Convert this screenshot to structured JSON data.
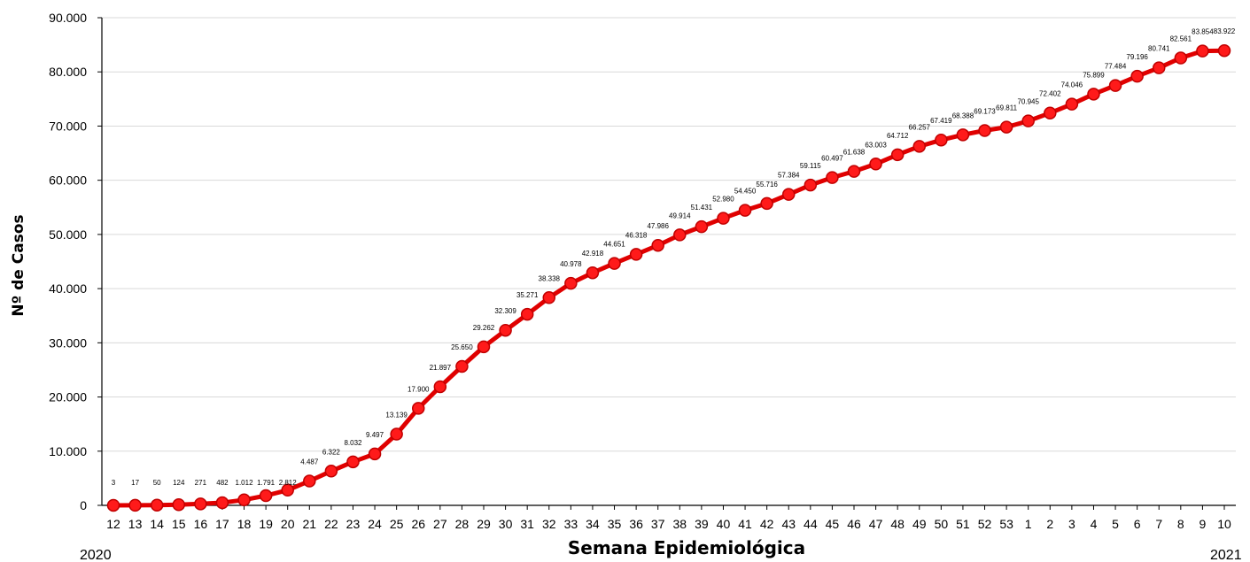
{
  "chart_data": {
    "type": "line",
    "title": "",
    "xlabel": "Semana Epidemiológica",
    "ylabel": "Nº de Casos",
    "ylim": [
      0,
      90000
    ],
    "yticks": [
      "0",
      "10.000",
      "20.000",
      "30.000",
      "40.000",
      "50.000",
      "60.000",
      "70.000",
      "80.000",
      "90.000"
    ],
    "grid": "horizontal",
    "year_labels": {
      "start": "2020",
      "end": "2021"
    },
    "colors": {
      "line": "#e00000",
      "marker_fill": "#ff1a1a",
      "marker_edge": "#c00000",
      "grid": "#d9d9d9"
    },
    "categories": [
      "12",
      "13",
      "14",
      "15",
      "16",
      "17",
      "18",
      "19",
      "20",
      "21",
      "22",
      "23",
      "24",
      "25",
      "26",
      "27",
      "28",
      "29",
      "30",
      "31",
      "32",
      "33",
      "34",
      "35",
      "36",
      "37",
      "38",
      "39",
      "40",
      "41",
      "42",
      "43",
      "44",
      "45",
      "46",
      "47",
      "48",
      "49",
      "50",
      "51",
      "52",
      "53",
      "1",
      "2",
      "3",
      "4",
      "5",
      "6",
      "7",
      "8",
      "9",
      "10"
    ],
    "values": [
      3,
      17,
      50,
      124,
      271,
      482,
      1012,
      1791,
      2812,
      4487,
      6322,
      8032,
      9497,
      13139,
      17900,
      21897,
      25650,
      29262,
      32309,
      35271,
      38338,
      40978,
      42918,
      44651,
      46318,
      47986,
      49914,
      51431,
      52980,
      54450,
      55716,
      57384,
      59115,
      60497,
      61638,
      63003,
      64712,
      66257,
      67419,
      68388,
      69173,
      69811,
      70945,
      72402,
      74046,
      75899,
      77484,
      79196,
      80741,
      82561,
      83854,
      83922
    ],
    "labels": [
      "3",
      "17",
      "50",
      "124",
      "271",
      "482",
      "1.012",
      "1.791",
      "2.812",
      "4.487",
      "6.322",
      "8.032",
      "9.497",
      "13.139",
      "17.900",
      "21.897",
      "25.650",
      "29.262",
      "32.309",
      "35.271",
      "38.338",
      "40.978",
      "42.918",
      "44.651",
      "46.318",
      "47.986",
      "49.914",
      "51.431",
      "52.980",
      "54.450",
      "55.716",
      "57.384",
      "59.115",
      "60.497",
      "61.638",
      "63.003",
      "64.712",
      "66.257",
      "67.419",
      "68.388",
      "69.173",
      "69.811",
      "70.945",
      "72.402",
      "74.046",
      "75.899",
      "77.484",
      "79.196",
      "80.741",
      "82.561",
      "83.854",
      "83.922"
    ]
  }
}
